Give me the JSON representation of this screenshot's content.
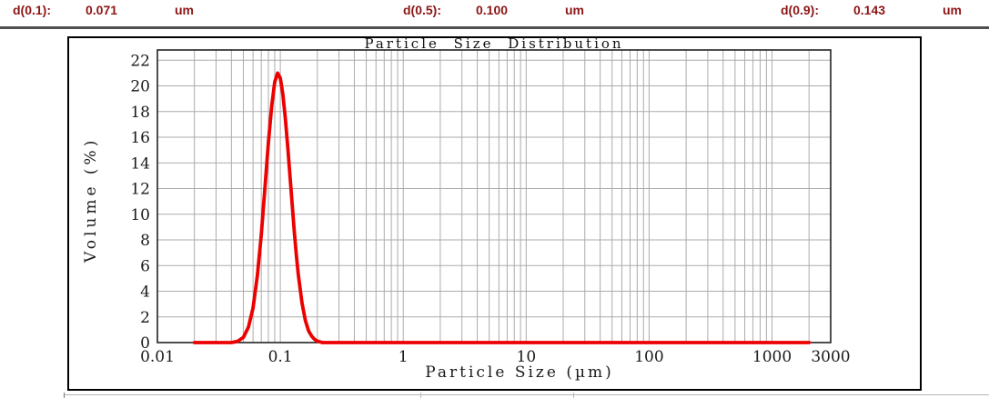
{
  "header": {
    "accent_color": "#8c1616",
    "stats": [
      {
        "label": "d(0.1):",
        "value": "0.071",
        "unit": "um"
      },
      {
        "label": "d(0.5):",
        "value": "0.100",
        "unit": "um"
      },
      {
        "label": "d(0.9):",
        "value": "0.143",
        "unit": "um"
      }
    ]
  },
  "chart_data": {
    "type": "line",
    "title": "Particle Size Distribution",
    "xlabel": "Particle Size (µm)",
    "ylabel": "Volume (%)",
    "x_scale": "log",
    "xlim": [
      0.01,
      3000
    ],
    "ylim": [
      0,
      22.8
    ],
    "x_ticks": [
      0.01,
      0.1,
      1,
      10,
      100,
      1000,
      3000
    ],
    "x_tick_labels": [
      "0.01",
      "0.1",
      "1",
      "10",
      "100",
      "1000",
      "3000"
    ],
    "y_ticks": [
      0,
      2,
      4,
      6,
      8,
      10,
      12,
      14,
      16,
      18,
      20,
      22
    ],
    "grid": "major+minor-log",
    "legend": "none",
    "grid_color": "#ababab",
    "frame_color": "#222222",
    "text_color": "#1a1a1a",
    "series": [
      {
        "name": "Volume (%)",
        "color": "#ec0000",
        "points": [
          [
            0.02,
            0
          ],
          [
            0.03,
            0
          ],
          [
            0.04,
            0
          ],
          [
            0.045,
            0.1
          ],
          [
            0.05,
            0.4
          ],
          [
            0.055,
            1.2
          ],
          [
            0.06,
            2.7
          ],
          [
            0.065,
            5.2
          ],
          [
            0.07,
            8.4
          ],
          [
            0.075,
            12.1
          ],
          [
            0.08,
            15.6
          ],
          [
            0.085,
            18.4
          ],
          [
            0.09,
            20.3
          ],
          [
            0.095,
            21.0
          ],
          [
            0.1,
            20.6
          ],
          [
            0.105,
            19.3
          ],
          [
            0.11,
            17.4
          ],
          [
            0.115,
            15.2
          ],
          [
            0.12,
            12.9
          ],
          [
            0.125,
            10.7
          ],
          [
            0.13,
            8.6
          ],
          [
            0.135,
            6.8
          ],
          [
            0.14,
            5.3
          ],
          [
            0.15,
            3.1
          ],
          [
            0.16,
            1.7
          ],
          [
            0.17,
            0.9
          ],
          [
            0.18,
            0.5
          ],
          [
            0.19,
            0.25
          ],
          [
            0.2,
            0.12
          ],
          [
            0.21,
            0.06
          ],
          [
            0.22,
            0
          ],
          [
            0.3,
            0
          ],
          [
            0.5,
            0
          ],
          [
            1,
            0
          ],
          [
            2,
            0
          ],
          [
            5,
            0
          ],
          [
            10,
            0
          ],
          [
            50,
            0
          ],
          [
            100,
            0
          ],
          [
            500,
            0
          ],
          [
            1000,
            0
          ],
          [
            2000,
            0
          ]
        ]
      }
    ]
  }
}
